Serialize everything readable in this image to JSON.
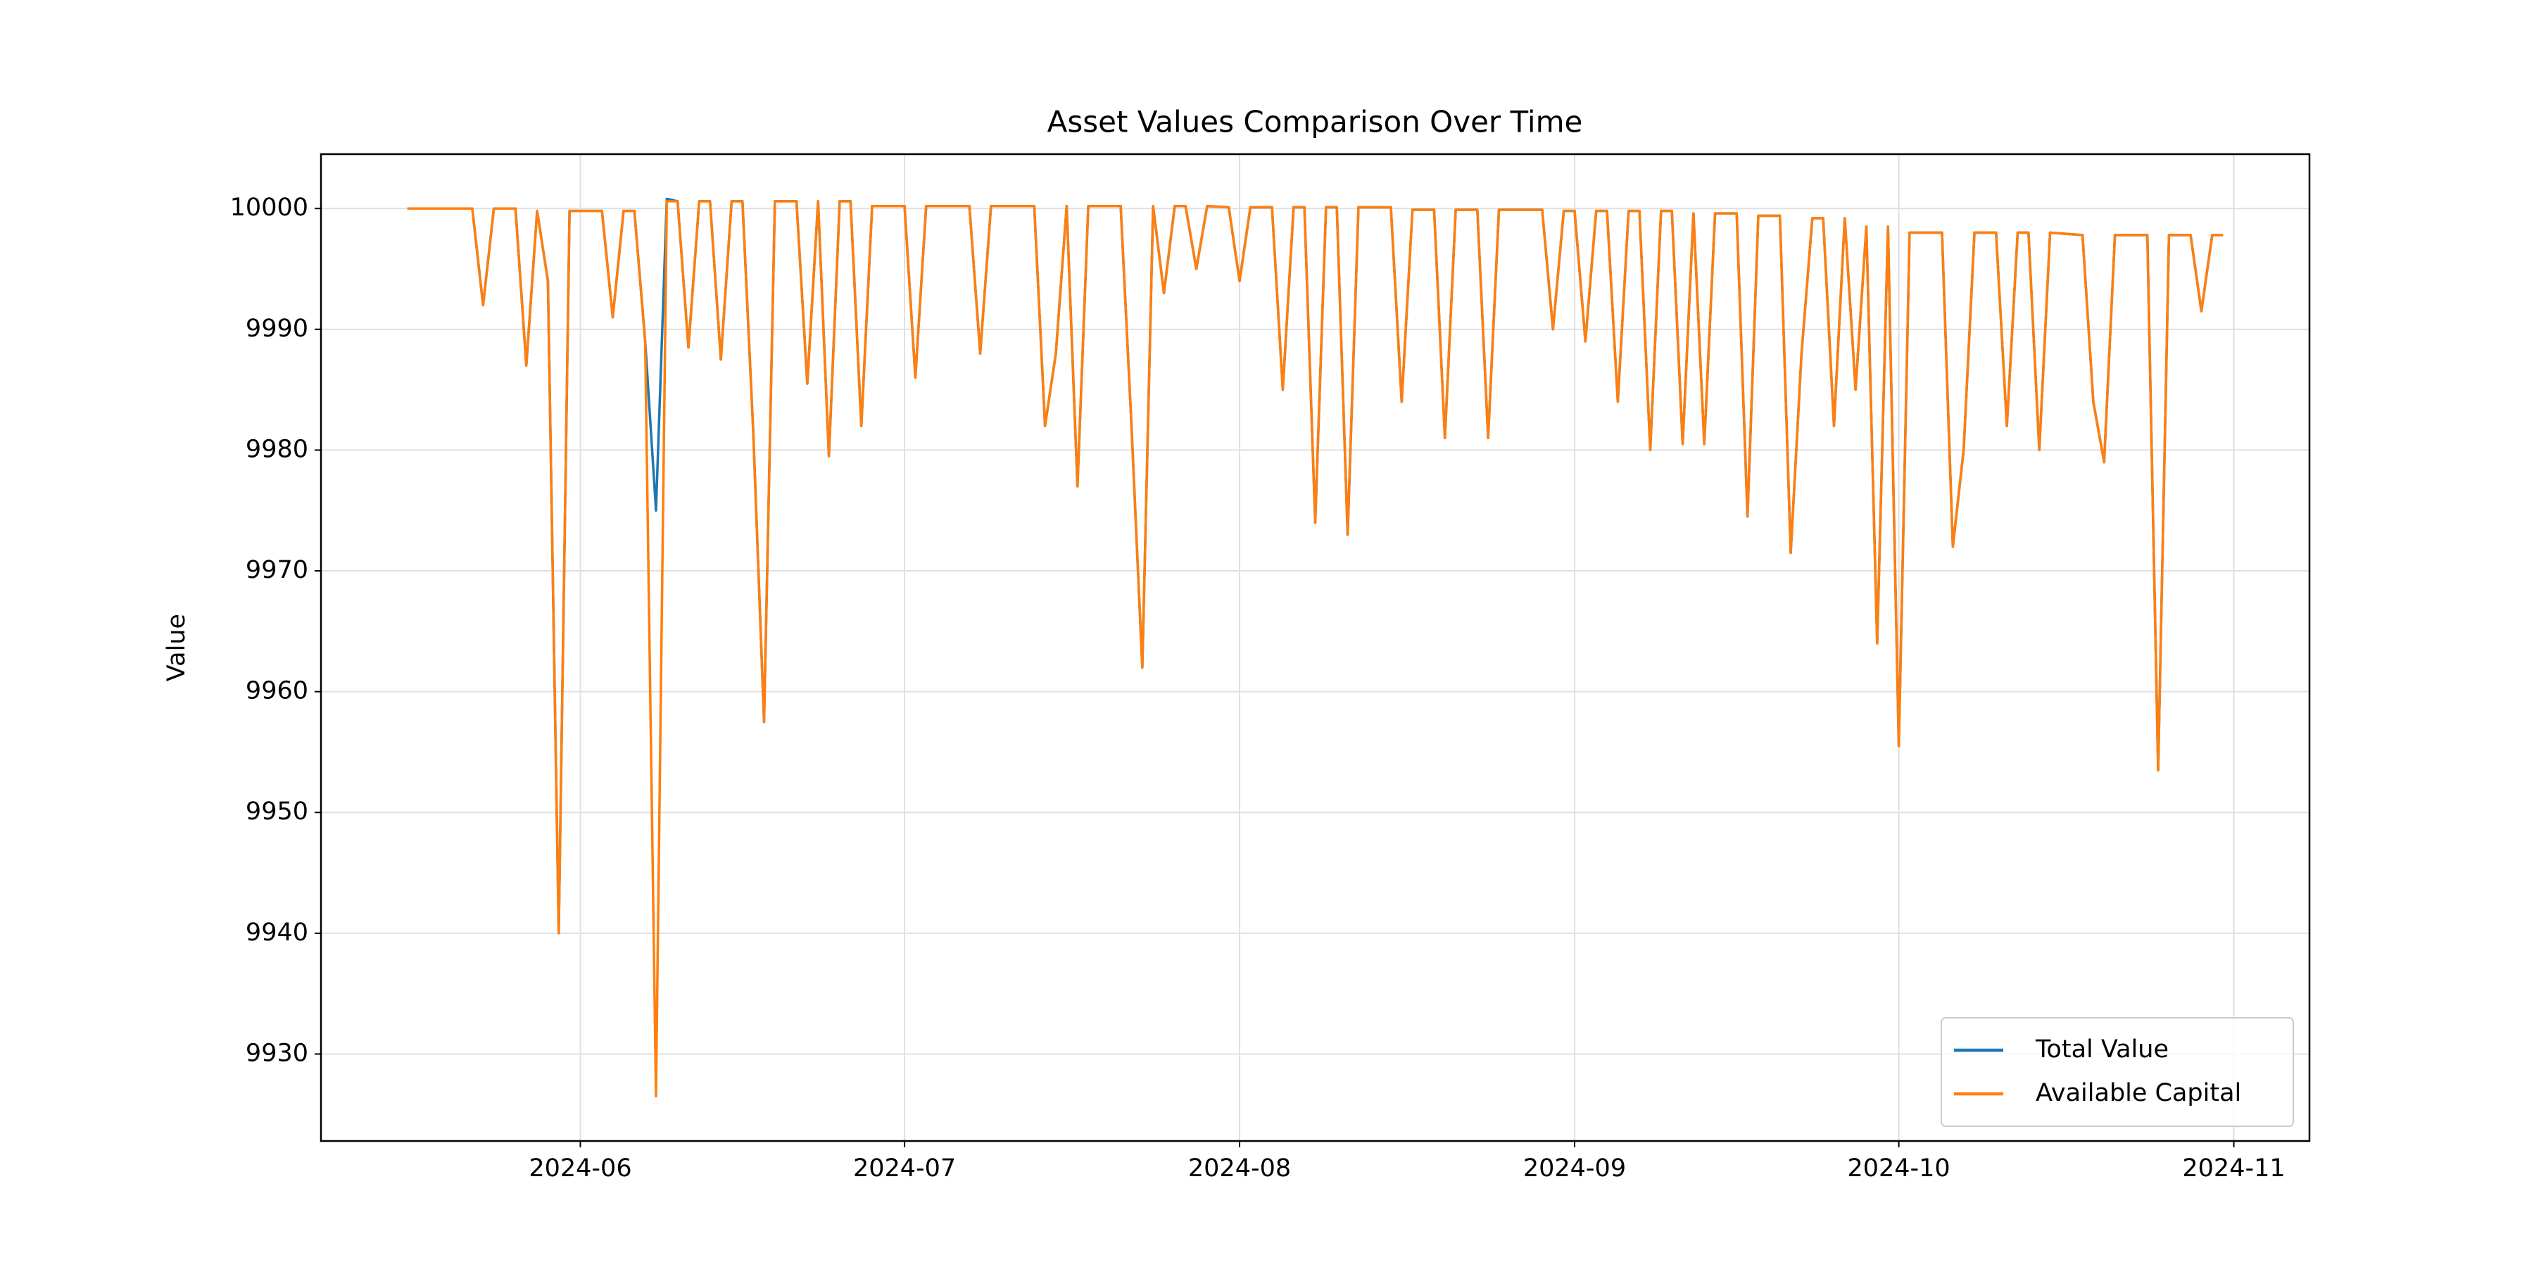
{
  "chart_data": {
    "type": "line",
    "title": "Asset Values Comparison Over Time",
    "y_label": "Value",
    "x": [
      "2024-05-16",
      "2024-05-22",
      "2024-05-23",
      "2024-05-24",
      "2024-05-26",
      "2024-05-27",
      "2024-05-28",
      "2024-05-29",
      "2024-05-30",
      "2024-05-31",
      "2024-06-03",
      "2024-06-04",
      "2024-06-05",
      "2024-06-06",
      "2024-06-07",
      "2024-06-08",
      "2024-06-09",
      "2024-06-10",
      "2024-06-11",
      "2024-06-12",
      "2024-06-13",
      "2024-06-14",
      "2024-06-15",
      "2024-06-16",
      "2024-06-17",
      "2024-06-18",
      "2024-06-19",
      "2024-06-21",
      "2024-06-22",
      "2024-06-23",
      "2024-06-24",
      "2024-06-25",
      "2024-06-26",
      "2024-06-27",
      "2024-06-28",
      "2024-07-01",
      "2024-07-02",
      "2024-07-03",
      "2024-07-07",
      "2024-07-08",
      "2024-07-09",
      "2024-07-13",
      "2024-07-14",
      "2024-07-15",
      "2024-07-16",
      "2024-07-17",
      "2024-07-18",
      "2024-07-21",
      "2024-07-22",
      "2024-07-23",
      "2024-07-24",
      "2024-07-25",
      "2024-07-26",
      "2024-07-27",
      "2024-07-28",
      "2024-07-29",
      "2024-07-31",
      "2024-08-01",
      "2024-08-02",
      "2024-08-04",
      "2024-08-05",
      "2024-08-06",
      "2024-08-07",
      "2024-08-08",
      "2024-08-09",
      "2024-08-10",
      "2024-08-11",
      "2024-08-12",
      "2024-08-15",
      "2024-08-16",
      "2024-08-17",
      "2024-08-19",
      "2024-08-20",
      "2024-08-21",
      "2024-08-23",
      "2024-08-24",
      "2024-08-25",
      "2024-08-29",
      "2024-08-30",
      "2024-08-31",
      "2024-09-01",
      "2024-09-02",
      "2024-09-03",
      "2024-09-04",
      "2024-09-05",
      "2024-09-06",
      "2024-09-07",
      "2024-09-08",
      "2024-09-09",
      "2024-09-10",
      "2024-09-11",
      "2024-09-12",
      "2024-09-13",
      "2024-09-14",
      "2024-09-16",
      "2024-09-17",
      "2024-09-18",
      "2024-09-20",
      "2024-09-21",
      "2024-09-22",
      "2024-09-23",
      "2024-09-24",
      "2024-09-25",
      "2024-09-26",
      "2024-09-27",
      "2024-09-28",
      "2024-09-29",
      "2024-09-30",
      "2024-10-01",
      "2024-10-02",
      "2024-10-05",
      "2024-10-06",
      "2024-10-07",
      "2024-10-08",
      "2024-10-10",
      "2024-10-11",
      "2024-10-12",
      "2024-10-13",
      "2024-10-14",
      "2024-10-15",
      "2024-10-18",
      "2024-10-19",
      "2024-10-20",
      "2024-10-21",
      "2024-10-24",
      "2024-10-25",
      "2024-10-26",
      "2024-10-28",
      "2024-10-29",
      "2024-10-30",
      "2024-10-31"
    ],
    "series": [
      {
        "name": "Total Value",
        "color": "#1f77b4",
        "values": [
          10000.0,
          10000.0,
          9992,
          10000.0,
          10000.0,
          9987,
          9999.8,
          9994,
          9940,
          9999.8,
          9999.8,
          9991,
          9999.8,
          9999.8,
          9989,
          9975,
          10000.8,
          10000.6,
          9988.5,
          10000.6,
          10000.6,
          9987.5,
          10000.6,
          10000.6,
          9981.5,
          9957.5,
          10000.6,
          10000.6,
          9985.5,
          10000.6,
          9979.5,
          10000.6,
          10000.6,
          9982,
          10000.2,
          10000.2,
          9986,
          10000.2,
          10000.2,
          9988,
          10000.2,
          10000.2,
          9982,
          9988,
          10000.2,
          9977,
          10000.2,
          10000.2,
          9982,
          9962,
          10000.2,
          9993,
          10000.2,
          10000.2,
          9995,
          10000.2,
          10000.1,
          9994,
          10000.1,
          10000.1,
          9985,
          10000.1,
          10000.1,
          9974,
          10000.1,
          10000.1,
          9973,
          10000.1,
          10000.1,
          9984,
          9999.9,
          9999.9,
          9981,
          9999.9,
          9999.9,
          9981,
          9999.9,
          9999.9,
          9990,
          9999.8,
          9999.8,
          9989,
          9999.8,
          9999.8,
          9984,
          9999.8,
          9999.8,
          9980,
          9999.8,
          9999.8,
          9980.5,
          9999.6,
          9980.5,
          9999.6,
          9999.6,
          9974.5,
          9999.4,
          9999.4,
          9971.5,
          9988,
          9999.2,
          9999.2,
          9982,
          9999.2,
          9985,
          9998.5,
          9964,
          9998.5,
          9955.5,
          9998.0,
          9998.0,
          9972,
          9980,
          9998.0,
          9998.0,
          9982,
          9998.0,
          9998.0,
          9980,
          9998.0,
          9997.8,
          9984,
          9979,
          9997.8,
          9997.8,
          9953.5,
          9997.8,
          9997.8,
          9991.5,
          9997.8,
          9997.8
        ]
      },
      {
        "name": "Available Capital",
        "color": "#ff7f0e",
        "values": [
          10000.0,
          10000.0,
          9992,
          10000.0,
          10000.0,
          9987,
          9999.8,
          9994,
          9940,
          9999.8,
          9999.8,
          9991,
          9999.8,
          9999.8,
          9989,
          9926.5,
          10000.6,
          10000.6,
          9988.5,
          10000.6,
          10000.6,
          9987.5,
          10000.6,
          10000.6,
          9981.5,
          9957.5,
          10000.6,
          10000.6,
          9985.5,
          10000.6,
          9979.5,
          10000.6,
          10000.6,
          9982,
          10000.2,
          10000.2,
          9986,
          10000.2,
          10000.2,
          9988,
          10000.2,
          10000.2,
          9982,
          9988,
          10000.2,
          9977,
          10000.2,
          10000.2,
          9982,
          9962,
          10000.2,
          9993,
          10000.2,
          10000.2,
          9995,
          10000.2,
          10000.1,
          9994,
          10000.1,
          10000.1,
          9985,
          10000.1,
          10000.1,
          9974,
          10000.1,
          10000.1,
          9973,
          10000.1,
          10000.1,
          9984,
          9999.9,
          9999.9,
          9981,
          9999.9,
          9999.9,
          9981,
          9999.9,
          9999.9,
          9990,
          9999.8,
          9999.8,
          9989,
          9999.8,
          9999.8,
          9984,
          9999.8,
          9999.8,
          9980,
          9999.8,
          9999.8,
          9980.5,
          9999.6,
          9980.5,
          9999.6,
          9999.6,
          9974.5,
          9999.4,
          9999.4,
          9971.5,
          9988,
          9999.2,
          9999.2,
          9982,
          9999.2,
          9985,
          9998.5,
          9964,
          9998.5,
          9955.5,
          9998.0,
          9998.0,
          9972,
          9980,
          9998.0,
          9998.0,
          9982,
          9998.0,
          9998.0,
          9980,
          9998.0,
          9997.8,
          9984,
          9979,
          9997.8,
          9997.8,
          9953.5,
          9997.8,
          9997.8,
          9991.5,
          9997.8,
          9997.8
        ]
      }
    ],
    "xlim": [
      "2024-05-08",
      "2024-11-08"
    ],
    "xticks": [
      {
        "value": "2024-06-01",
        "label": "2024-06"
      },
      {
        "value": "2024-07-01",
        "label": "2024-07"
      },
      {
        "value": "2024-08-01",
        "label": "2024-08"
      },
      {
        "value": "2024-09-01",
        "label": "2024-09"
      },
      {
        "value": "2024-10-01",
        "label": "2024-10"
      },
      {
        "value": "2024-11-01",
        "label": "2024-11"
      }
    ],
    "ylim": [
      9922.8,
      10004.5
    ],
    "yticks": [
      9930,
      9940,
      9950,
      9960,
      9970,
      9980,
      9990,
      10000
    ],
    "grid": true,
    "legend": "lower right"
  }
}
